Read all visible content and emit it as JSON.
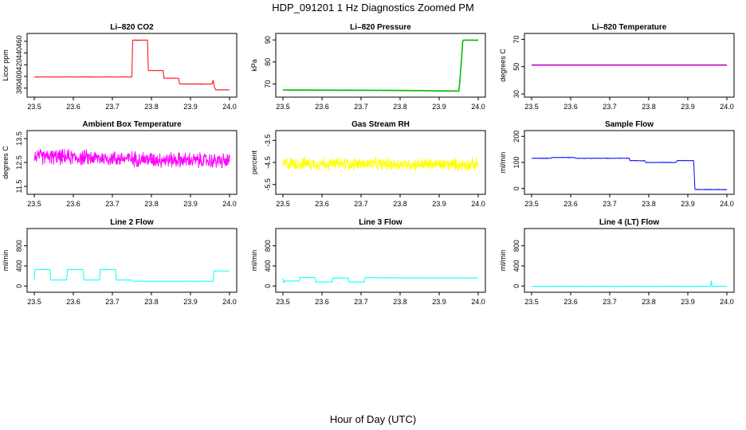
{
  "figure": {
    "title": "HDP_091201  1 Hz Diagnostics Zoomed PM",
    "xlabel": "Hour of Day (UTC)"
  },
  "chart_data": [
    {
      "type": "line",
      "title": "Li–820 CO2",
      "ylabel": "Licor ppm",
      "color": "#ff0000",
      "xlim": [
        23.5,
        24.0
      ],
      "ylim": [
        370,
        468
      ],
      "xticks": [
        "23.5",
        "23.6",
        "23.7",
        "23.8",
        "23.9",
        "24.0"
      ],
      "yticks": [
        "380",
        "400",
        "420",
        "440",
        "460"
      ],
      "noise": 0.4,
      "x": [
        23.5,
        23.75,
        23.752,
        23.79,
        23.792,
        23.83,
        23.832,
        23.87,
        23.872,
        23.955,
        23.958,
        23.962,
        23.965,
        24.0
      ],
      "y": [
        399,
        399,
        462,
        462,
        410,
        410,
        397,
        397,
        387,
        387,
        394,
        380,
        377,
        377
      ]
    },
    {
      "type": "line",
      "title": "Li–820 Pressure",
      "ylabel": "kPa",
      "color": "#00c000",
      "xlim": [
        23.5,
        24.0
      ],
      "ylim": [
        65.5,
        91.5
      ],
      "xticks": [
        "23.5",
        "23.6",
        "23.7",
        "23.8",
        "23.9",
        "24.0"
      ],
      "yticks": [
        "70",
        "80",
        "90"
      ],
      "noise": 0.08,
      "x": [
        23.5,
        23.8,
        23.95,
        23.952,
        23.958,
        23.96,
        23.962,
        24.0
      ],
      "y": [
        67.3,
        67.1,
        66.8,
        69,
        83,
        89,
        89.9,
        89.9
      ]
    },
    {
      "type": "line",
      "title": "Li–820 Temperature",
      "ylabel": "degrees C",
      "color": "#cc00cc",
      "xlim": [
        23.5,
        24.0
      ],
      "ylim": [
        30,
        72
      ],
      "xticks": [
        "23.5",
        "23.6",
        "23.7",
        "23.8",
        "23.9",
        "24.0"
      ],
      "yticks": [
        "30",
        "50",
        "70"
      ],
      "noise": 0,
      "x": [
        23.5,
        24.0
      ],
      "y": [
        51.2,
        51.2
      ]
    },
    {
      "type": "line",
      "title": "Ambient Box Temperature",
      "ylabel": "degrees C",
      "color": "#ff00ff",
      "xlim": [
        23.5,
        24.0
      ],
      "ylim": [
        11.3,
        13.7
      ],
      "xticks": [
        "23.5",
        "23.6",
        "23.7",
        "23.8",
        "23.9",
        "24.0"
      ],
      "yticks": [
        "11.5",
        "12.5",
        "13.5"
      ],
      "noise": 0.38,
      "x": [
        23.5,
        24.0
      ],
      "y": [
        12.75,
        12.55
      ]
    },
    {
      "type": "line",
      "title": "Gas Stream RH",
      "ylabel": "percent",
      "color": "#ffff00",
      "xlim": [
        23.5,
        24.0
      ],
      "ylim": [
        -5.8,
        -3.2
      ],
      "xticks": [
        "23.5",
        "23.6",
        "23.7",
        "23.8",
        "23.9",
        "24.0"
      ],
      "yticks": [
        "-5.5",
        "-4.5",
        "-3.5"
      ],
      "noise": 0.33,
      "x": [
        23.5,
        24.0
      ],
      "y": [
        -4.55,
        -4.6
      ]
    },
    {
      "type": "line",
      "title": "Sample Flow",
      "ylabel": "ml/min",
      "color": "#0000ff",
      "xlim": [
        23.5,
        24.0
      ],
      "ylim": [
        -10,
        210
      ],
      "xticks": [
        "23.5",
        "23.6",
        "23.7",
        "23.8",
        "23.9",
        "24.0"
      ],
      "yticks": [
        "0",
        "100",
        "200"
      ],
      "noise": 1.2,
      "x": [
        23.5,
        23.55,
        23.552,
        23.61,
        23.612,
        23.75,
        23.752,
        23.79,
        23.792,
        23.87,
        23.872,
        23.915,
        23.918,
        24.0
      ],
      "y": [
        116,
        116,
        119,
        119,
        116,
        116,
        107,
        107,
        100,
        100,
        107,
        107,
        -4,
        -4
      ]
    },
    {
      "type": "line",
      "title": "Line 2 Flow",
      "ylabel": "ml/min",
      "color": "#00ffff",
      "xlim": [
        23.5,
        24.0
      ],
      "ylim": [
        -60,
        1080
      ],
      "xticks": [
        "23.5",
        "23.6",
        "23.7",
        "23.8",
        "23.9",
        "24.0"
      ],
      "yticks": [
        "0",
        "400",
        "800"
      ],
      "noise": 3,
      "x": [
        23.5,
        23.502,
        23.54,
        23.542,
        23.583,
        23.585,
        23.625,
        23.627,
        23.667,
        23.669,
        23.708,
        23.71,
        23.75,
        23.752,
        23.958,
        23.96,
        24.0
      ],
      "y": [
        130,
        330,
        330,
        120,
        120,
        330,
        330,
        120,
        120,
        330,
        330,
        120,
        120,
        95,
        95,
        300,
        300
      ]
    },
    {
      "type": "line",
      "title": "Line 3 Flow",
      "ylabel": "ml/min",
      "color": "#00ffff",
      "xlim": [
        23.5,
        24.0
      ],
      "ylim": [
        -60,
        1080
      ],
      "xticks": [
        "23.5",
        "23.6",
        "23.7",
        "23.8",
        "23.9",
        "24.0"
      ],
      "yticks": [
        "0",
        "400",
        "800"
      ],
      "noise": 3,
      "x": [
        23.5,
        23.502,
        23.504,
        23.542,
        23.544,
        23.583,
        23.585,
        23.625,
        23.627,
        23.667,
        23.669,
        23.708,
        23.71,
        24.0
      ],
      "y": [
        150,
        60,
        100,
        100,
        170,
        170,
        80,
        80,
        160,
        160,
        80,
        80,
        165,
        160
      ]
    },
    {
      "type": "line",
      "title": "Line 4 (LT) Flow",
      "ylabel": "ml/min",
      "color": "#00ffff",
      "xlim": [
        23.5,
        24.0
      ],
      "ylim": [
        -60,
        1080
      ],
      "xticks": [
        "23.5",
        "23.6",
        "23.7",
        "23.8",
        "23.9",
        "24.0"
      ],
      "yticks": [
        "0",
        "400",
        "800"
      ],
      "noise": 1.5,
      "x": [
        23.5,
        23.958,
        23.96,
        23.962,
        23.964,
        24.0
      ],
      "y": [
        -5,
        -5,
        100,
        -5,
        -5,
        -5
      ]
    }
  ]
}
